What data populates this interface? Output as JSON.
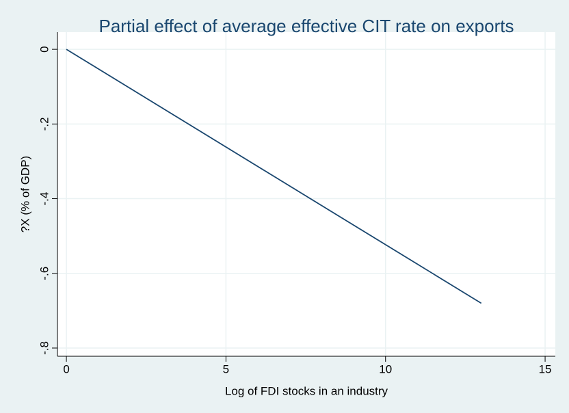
{
  "chart_data": {
    "type": "line",
    "title": "Partial effect of average effective CIT rate on exports",
    "x_label": "Log of FDI stocks in an industry",
    "y_label": "?X (% of GDP)",
    "x": [
      0,
      13
    ],
    "series": [
      {
        "color": "#1a476f",
        "values": [
          0,
          -0.68
        ]
      }
    ],
    "xlim": [
      -0.28,
      15.32
    ],
    "xticks": [
      0,
      5,
      10,
      15
    ],
    "ylim": [
      -0.822,
      0.046
    ],
    "yticks": [
      0,
      {
        "value": -0.2,
        "label": "-.2"
      },
      {
        "value": -0.4,
        "label": "-.4"
      },
      {
        "value": -0.6,
        "label": "-.6"
      },
      {
        "value": -0.8,
        "label": "-.8"
      }
    ],
    "grid": true
  }
}
